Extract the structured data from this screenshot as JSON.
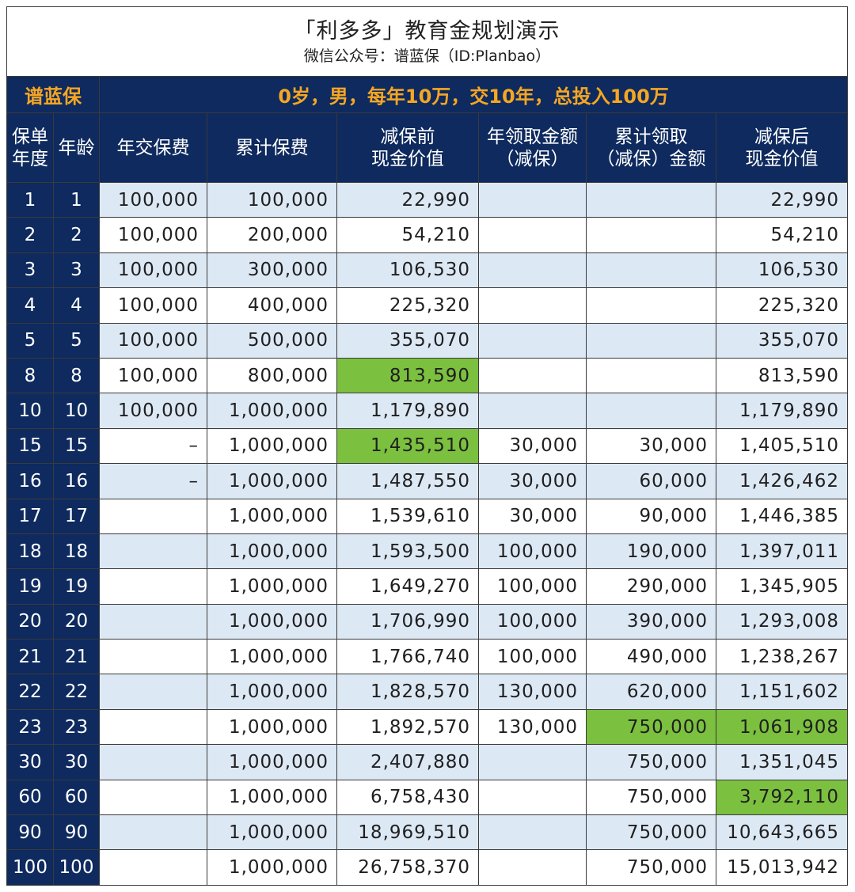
{
  "title": "「利多多」教育金规划演示",
  "subtitle": "微信公众号：谱蓝保（ID:Planbao）",
  "brand": "谱蓝保",
  "scenario": "0岁，男，每年10万，交10年，总投入100万",
  "headers": {
    "year": [
      "保单",
      "年度"
    ],
    "age": "年龄",
    "annual_premium": "年交保费",
    "cum_premium": "累计保费",
    "cv_before": [
      "减保前",
      "现金价值"
    ],
    "annual_withdraw": [
      "年领取金额",
      "（减保）"
    ],
    "cum_withdraw": [
      "累计领取",
      "（减保）金额"
    ],
    "cv_after": [
      "减保后",
      "现金价值"
    ]
  },
  "colors": {
    "header_bg": "#0e2a5e",
    "accent": "#f5a623",
    "row_shade": "#dde8f5",
    "highlight": "#7cc03f"
  },
  "rows": [
    {
      "year": "1",
      "age": "1",
      "annual": "100,000",
      "cum": "100,000",
      "cvb": "22,990",
      "aw": "",
      "cw": "",
      "cva": "22,990",
      "hl": []
    },
    {
      "year": "2",
      "age": "2",
      "annual": "100,000",
      "cum": "200,000",
      "cvb": "54,210",
      "aw": "",
      "cw": "",
      "cva": "54,210",
      "hl": []
    },
    {
      "year": "3",
      "age": "3",
      "annual": "100,000",
      "cum": "300,000",
      "cvb": "106,530",
      "aw": "",
      "cw": "",
      "cva": "106,530",
      "hl": []
    },
    {
      "year": "4",
      "age": "4",
      "annual": "100,000",
      "cum": "400,000",
      "cvb": "225,320",
      "aw": "",
      "cw": "",
      "cva": "225,320",
      "hl": []
    },
    {
      "year": "5",
      "age": "5",
      "annual": "100,000",
      "cum": "500,000",
      "cvb": "355,070",
      "aw": "",
      "cw": "",
      "cva": "355,070",
      "hl": []
    },
    {
      "year": "8",
      "age": "8",
      "annual": "100,000",
      "cum": "800,000",
      "cvb": "813,590",
      "aw": "",
      "cw": "",
      "cva": "813,590",
      "hl": [
        "cvb"
      ]
    },
    {
      "year": "10",
      "age": "10",
      "annual": "100,000",
      "cum": "1,000,000",
      "cvb": "1,179,890",
      "aw": "",
      "cw": "",
      "cva": "1,179,890",
      "hl": []
    },
    {
      "year": "15",
      "age": "15",
      "annual": "–",
      "cum": "1,000,000",
      "cvb": "1,435,510",
      "aw": "30,000",
      "cw": "30,000",
      "cva": "1,405,510",
      "hl": [
        "cvb"
      ]
    },
    {
      "year": "16",
      "age": "16",
      "annual": "–",
      "cum": "1,000,000",
      "cvb": "1,487,550",
      "aw": "30,000",
      "cw": "60,000",
      "cva": "1,426,462",
      "hl": []
    },
    {
      "year": "17",
      "age": "17",
      "annual": "",
      "cum": "1,000,000",
      "cvb": "1,539,610",
      "aw": "30,000",
      "cw": "90,000",
      "cva": "1,446,385",
      "hl": []
    },
    {
      "year": "18",
      "age": "18",
      "annual": "",
      "cum": "1,000,000",
      "cvb": "1,593,500",
      "aw": "100,000",
      "cw": "190,000",
      "cva": "1,397,011",
      "hl": []
    },
    {
      "year": "19",
      "age": "19",
      "annual": "",
      "cum": "1,000,000",
      "cvb": "1,649,270",
      "aw": "100,000",
      "cw": "290,000",
      "cva": "1,345,905",
      "hl": []
    },
    {
      "year": "20",
      "age": "20",
      "annual": "",
      "cum": "1,000,000",
      "cvb": "1,706,990",
      "aw": "100,000",
      "cw": "390,000",
      "cva": "1,293,008",
      "hl": []
    },
    {
      "year": "21",
      "age": "21",
      "annual": "",
      "cum": "1,000,000",
      "cvb": "1,766,740",
      "aw": "100,000",
      "cw": "490,000",
      "cva": "1,238,267",
      "hl": []
    },
    {
      "year": "22",
      "age": "22",
      "annual": "",
      "cum": "1,000,000",
      "cvb": "1,828,570",
      "aw": "130,000",
      "cw": "620,000",
      "cva": "1,151,602",
      "hl": []
    },
    {
      "year": "23",
      "age": "23",
      "annual": "",
      "cum": "1,000,000",
      "cvb": "1,892,570",
      "aw": "130,000",
      "cw": "750,000",
      "cva": "1,061,908",
      "hl": [
        "cw",
        "cva"
      ]
    },
    {
      "year": "30",
      "age": "30",
      "annual": "",
      "cum": "1,000,000",
      "cvb": "2,407,880",
      "aw": "",
      "cw": "750,000",
      "cva": "1,351,045",
      "hl": []
    },
    {
      "year": "60",
      "age": "60",
      "annual": "",
      "cum": "1,000,000",
      "cvb": "6,758,430",
      "aw": "",
      "cw": "750,000",
      "cva": "3,792,110",
      "hl": [
        "cva"
      ]
    },
    {
      "year": "90",
      "age": "90",
      "annual": "",
      "cum": "1,000,000",
      "cvb": "18,969,510",
      "aw": "",
      "cw": "750,000",
      "cva": "10,643,665",
      "hl": []
    },
    {
      "year": "100",
      "age": "100",
      "annual": "",
      "cum": "1,000,000",
      "cvb": "26,758,370",
      "aw": "",
      "cw": "750,000",
      "cva": "15,013,942",
      "hl": []
    }
  ]
}
